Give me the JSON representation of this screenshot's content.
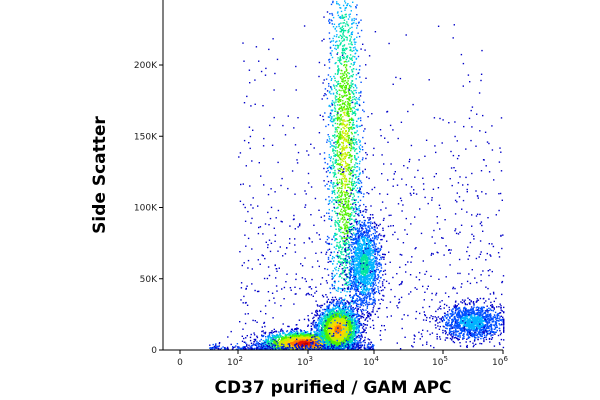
{
  "chart_data": {
    "type": "scatter",
    "subtype": "flow-cytometry-density-dot-plot",
    "title": "",
    "xlabel": "CD37 purified / GAM APC",
    "ylabel": "Side Scatter",
    "x_scale": "biexponential",
    "y_scale": "linear",
    "xlim": [
      -100,
      1000000
    ],
    "ylim": [
      0,
      240000
    ],
    "x_ticks": [
      {
        "value": 0,
        "label": "0"
      },
      {
        "value": 100,
        "label": "10",
        "exp": "2"
      },
      {
        "value": 1000,
        "label": "10",
        "exp": "3"
      },
      {
        "value": 10000,
        "label": "10",
        "exp": "4"
      },
      {
        "value": 100000,
        "label": "10",
        "exp": "5"
      },
      {
        "value": 1000000,
        "label": "10",
        "exp": "6"
      }
    ],
    "y_ticks": [
      {
        "value": 0,
        "label": "0"
      },
      {
        "value": 50000,
        "label": "50K"
      },
      {
        "value": 100000,
        "label": "100K"
      },
      {
        "value": 150000,
        "label": "150K"
      },
      {
        "value": 200000,
        "label": "200K"
      }
    ],
    "grid": false,
    "legend": "none",
    "color_map": [
      "#0000c8",
      "#0050ff",
      "#00b4ff",
      "#00e6a0",
      "#50f000",
      "#c8f000",
      "#ffd200",
      "#ff7800",
      "#e61400",
      "#b40000"
    ],
    "populations": [
      {
        "x_center": 900,
        "y_center": 5000,
        "x_spread_decades": 0.3,
        "y_spread": 4000,
        "relative_density": 1.0
      },
      {
        "x_center": 2800,
        "y_center": 15000,
        "x_spread_decades": 0.15,
        "y_spread": 8000,
        "relative_density": 0.85
      },
      {
        "x_center": 3500,
        "y_center": 140000,
        "x_spread_decades": 0.13,
        "y_spread": 70000,
        "relative_density": 0.6
      },
      {
        "x_center": 7000,
        "y_center": 60000,
        "x_spread_decades": 0.12,
        "y_spread": 15000,
        "relative_density": 0.35
      },
      {
        "x_center": 300000,
        "y_center": 20000,
        "x_spread_decades": 0.25,
        "y_spread": 6000,
        "relative_density": 0.25
      }
    ]
  }
}
